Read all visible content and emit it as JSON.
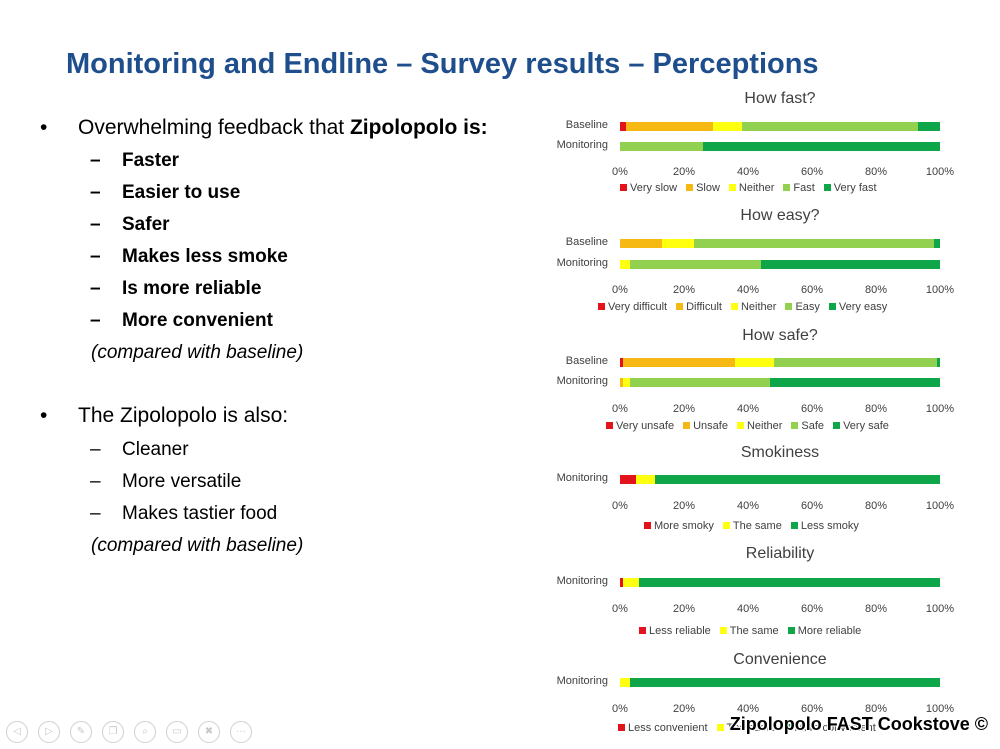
{
  "title": "Monitoring and Endline – Survey results – Perceptions",
  "bullets": {
    "b1": {
      "prefix": "Overwhelming feedback that ",
      "bold": "Zipolopolo is:"
    },
    "b1_items": [
      "Faster",
      "Easier to use",
      "Safer",
      "Makes less smoke",
      "Is more reliable",
      "More convenient"
    ],
    "b1_note": "(compared with baseline)",
    "b2": "The Zipolopolo is also:",
    "b2_items": [
      "Cleaner",
      "More versatile",
      "Makes tastier food"
    ],
    "b2_note": "(compared with baseline)",
    "bullet_glyph": "•",
    "dash_glyph": "–"
  },
  "colors": {
    "red": "#e3131b",
    "orange": "#f6b913",
    "yellow": "#ffff10",
    "lightgreen": "#92d050",
    "green": "#0fa64a",
    "title": "#1f4e8c"
  },
  "toolbar": {
    "icons": [
      "back-icon",
      "forward-icon",
      "pen-icon",
      "slides-icon",
      "zoom-icon",
      "subtitles-icon",
      "camera-off-icon",
      "more-icon"
    ],
    "glyphs": [
      "◁",
      "▷",
      "✎",
      "❐",
      "⌕",
      "▭",
      "✖",
      "···"
    ]
  },
  "footer": "Zipolopolo FAST Cookstove ©",
  "chart_data": [
    {
      "type": "bar",
      "stacked": true,
      "orientation": "horizontal",
      "title": "How fast?",
      "categories": [
        "Baseline",
        "Monitoring"
      ],
      "series": [
        {
          "name": "Very slow",
          "color": "#e3131b",
          "values": [
            2,
            0
          ]
        },
        {
          "name": "Slow",
          "color": "#f6b913",
          "values": [
            27,
            0
          ]
        },
        {
          "name": "Neither",
          "color": "#ffff10",
          "values": [
            9,
            0
          ]
        },
        {
          "name": "Fast",
          "color": "#92d050",
          "values": [
            55,
            26
          ]
        },
        {
          "name": "Very fast",
          "color": "#0fa64a",
          "values": [
            7,
            74
          ]
        }
      ],
      "xlim": [
        0,
        100
      ],
      "xticks": [
        "0%",
        "20%",
        "40%",
        "60%",
        "80%",
        "100%"
      ],
      "legend": "bottom"
    },
    {
      "type": "bar",
      "stacked": true,
      "orientation": "horizontal",
      "title": "How easy?",
      "categories": [
        "Baseline",
        "Monitoring"
      ],
      "series": [
        {
          "name": "Very difficult",
          "color": "#e3131b",
          "values": [
            0,
            0
          ]
        },
        {
          "name": "Difficult",
          "color": "#f6b913",
          "values": [
            13,
            0
          ]
        },
        {
          "name": "Neither",
          "color": "#ffff10",
          "values": [
            10,
            3
          ]
        },
        {
          "name": "Easy",
          "color": "#92d050",
          "values": [
            75,
            41
          ]
        },
        {
          "name": "Very easy",
          "color": "#0fa64a",
          "values": [
            2,
            56
          ]
        }
      ],
      "xlim": [
        0,
        100
      ],
      "xticks": [
        "0%",
        "20%",
        "40%",
        "60%",
        "80%",
        "100%"
      ],
      "legend": "bottom"
    },
    {
      "type": "bar",
      "stacked": true,
      "orientation": "horizontal",
      "title": "How safe?",
      "categories": [
        "Baseline",
        "Monitoring"
      ],
      "series": [
        {
          "name": "Very unsafe",
          "color": "#e3131b",
          "values": [
            1,
            0
          ]
        },
        {
          "name": "Unsafe",
          "color": "#f6b913",
          "values": [
            35,
            1
          ]
        },
        {
          "name": "Neither",
          "color": "#ffff10",
          "values": [
            12,
            2
          ]
        },
        {
          "name": "Safe",
          "color": "#92d050",
          "values": [
            51,
            44
          ]
        },
        {
          "name": "Very safe",
          "color": "#0fa64a",
          "values": [
            1,
            53
          ]
        }
      ],
      "xlim": [
        0,
        100
      ],
      "xticks": [
        "0%",
        "20%",
        "40%",
        "60%",
        "80%",
        "100%"
      ],
      "legend": "bottom"
    },
    {
      "type": "bar",
      "stacked": true,
      "orientation": "horizontal",
      "title": "Smokiness",
      "categories": [
        "Monitoring"
      ],
      "series": [
        {
          "name": "More smoky",
          "color": "#e3131b",
          "values": [
            5
          ]
        },
        {
          "name": "The same",
          "color": "#ffff10",
          "values": [
            6
          ]
        },
        {
          "name": "Less smoky",
          "color": "#0fa64a",
          "values": [
            89
          ]
        }
      ],
      "xlim": [
        0,
        100
      ],
      "xticks": [
        "0%",
        "20%",
        "40%",
        "60%",
        "80%",
        "100%"
      ],
      "legend": "bottom"
    },
    {
      "type": "bar",
      "stacked": true,
      "orientation": "horizontal",
      "title": "Reliability",
      "categories": [
        "Monitoring"
      ],
      "series": [
        {
          "name": "Less reliable",
          "color": "#e3131b",
          "values": [
            1
          ]
        },
        {
          "name": "The same",
          "color": "#ffff10",
          "values": [
            5
          ]
        },
        {
          "name": "More reliable",
          "color": "#0fa64a",
          "values": [
            94
          ]
        }
      ],
      "xlim": [
        0,
        100
      ],
      "xticks": [
        "0%",
        "20%",
        "40%",
        "60%",
        "80%",
        "100%"
      ],
      "legend": "bottom"
    },
    {
      "type": "bar",
      "stacked": true,
      "orientation": "horizontal",
      "title": "Convenience",
      "categories": [
        "Monitoring"
      ],
      "series": [
        {
          "name": "Less convenient",
          "color": "#e3131b",
          "values": [
            0
          ]
        },
        {
          "name": "The same",
          "color": "#ffff10",
          "values": [
            3
          ]
        },
        {
          "name": "More convenient",
          "color": "#0fa64a",
          "values": [
            97
          ]
        }
      ],
      "xlim": [
        0,
        100
      ],
      "xticks": [
        "0%",
        "20%",
        "40%",
        "60%",
        "80%",
        "100%"
      ],
      "legend": "bottom"
    }
  ]
}
